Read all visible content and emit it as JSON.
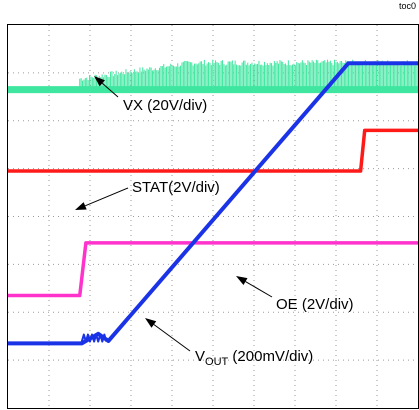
{
  "figure_id": "toc0",
  "chart_data": {
    "type": "line",
    "title": "",
    "xlabel": "",
    "ylabel": "",
    "grid": true,
    "grid_divisions": {
      "x": 10,
      "y": 8
    },
    "x": [
      0,
      0.8,
      0.9,
      1.0,
      3.4,
      10
    ],
    "series": [
      {
        "name": "VX",
        "color": "#3ee6a0",
        "scale": "20V/div",
        "y_div": [
          6.65,
          6.65,
          6.65,
          6.65,
          6.65,
          6.65
        ],
        "ripple": "bursty after 0.8 div"
      },
      {
        "name": "STAT",
        "color": "#ff1a1a",
        "scale": "2V/div",
        "y_div": [
          4.95,
          4.95,
          4.95,
          4.95,
          4.95,
          4.95,
          5.8,
          5.8
        ],
        "x_override": [
          0,
          3,
          6,
          8.5,
          8.6,
          8.6,
          8.7,
          10
        ]
      },
      {
        "name": "OE",
        "color": "#ff33cc",
        "scale": "2V/div",
        "y_div": [
          2.35,
          2.35,
          3.45,
          3.45
        ],
        "x_override": [
          0,
          1.75,
          1.9,
          10
        ]
      },
      {
        "name": "VOUT",
        "color": "#1a33e6",
        "scale": "200mV/div",
        "y_div": [
          1.35,
          1.35,
          1.55,
          1.4,
          7.2,
          7.2
        ],
        "x_override": [
          0,
          1.8,
          2.2,
          2.45,
          8.3,
          10
        ]
      }
    ],
    "annotations": [
      {
        "text": "VX (20V/div)",
        "points_to": "VX"
      },
      {
        "text": "STAT(2V/div)",
        "points_to": "STAT"
      },
      {
        "text": "OE (2V/div)",
        "points_to": "OE"
      },
      {
        "main": "V",
        "sub": "OUT",
        "rest": " (200mV/div)",
        "points_to": "VOUT"
      }
    ]
  }
}
